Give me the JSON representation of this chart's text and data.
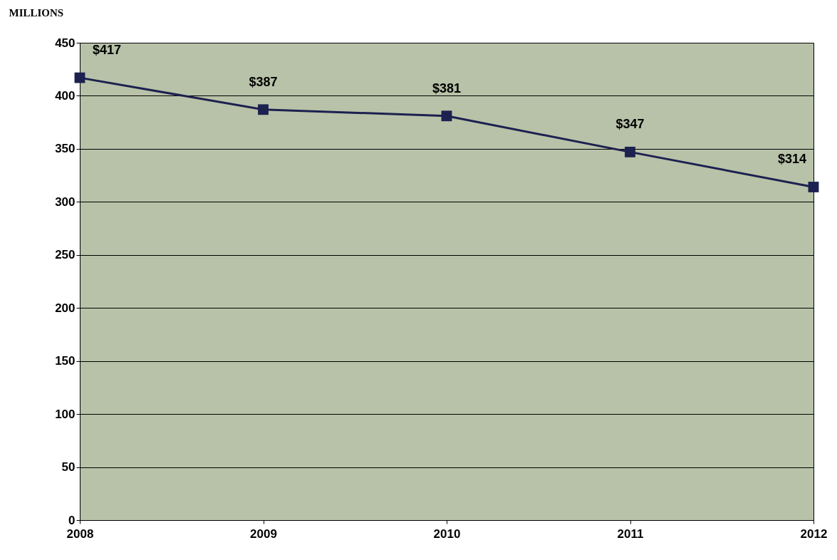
{
  "chart_data": {
    "type": "line",
    "ylabel": "MILLIONS",
    "categories": [
      "2008",
      "2009",
      "2010",
      "2011",
      "2012"
    ],
    "series": [
      {
        "color": "#1c2150",
        "values": [
          417,
          387,
          381,
          347,
          314
        ],
        "value_labels": [
          "$417",
          "$387",
          "$381",
          "$347",
          "$314"
        ]
      }
    ],
    "ylim": [
      0,
      450
    ],
    "yticks": [
      0,
      50,
      100,
      150,
      200,
      250,
      300,
      350,
      400,
      450
    ],
    "grid": "y",
    "marker": "square",
    "line_style": "solid",
    "legend": false
  }
}
